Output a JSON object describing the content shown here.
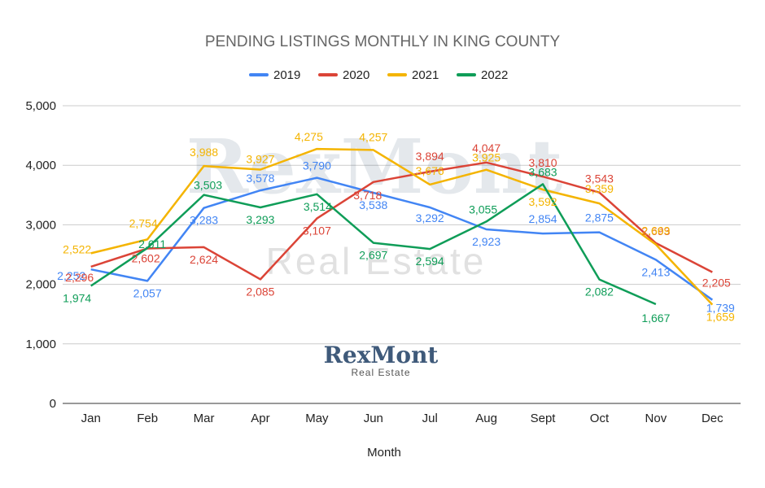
{
  "chart_data": {
    "type": "line",
    "title": "PENDING LISTINGS MONTHLY IN KING COUNTY",
    "xlabel": "Month",
    "ylabel": "",
    "categories": [
      "Jan",
      "Feb",
      "Mar",
      "Apr",
      "May",
      "Jun",
      "Jul",
      "Aug",
      "Sept",
      "Oct",
      "Nov",
      "Dec"
    ],
    "ylim": [
      0,
      5000
    ],
    "yticks": [
      "0",
      "1,000",
      "2,000",
      "3,000",
      "4,000",
      "5,000"
    ],
    "grid": true,
    "legend_position": "top-center",
    "series": [
      {
        "name": "2019",
        "color": "#4285f4",
        "values": [
          2252,
          2057,
          3283,
          3578,
          3790,
          3538,
          3292,
          2923,
          2854,
          2875,
          2413,
          1739
        ],
        "labels": [
          "2,252",
          "2,057",
          "3,283",
          "3,578",
          "3,790",
          "3,538",
          "3,292",
          "2,923",
          "2,854",
          "2,875",
          "2,413",
          "1,739"
        ]
      },
      {
        "name": "2020",
        "color": "#db4437",
        "values": [
          2296,
          2602,
          2624,
          2085,
          3107,
          3718,
          3894,
          4047,
          3810,
          3543,
          2693,
          2205
        ],
        "labels": [
          "2,296",
          "2,602",
          "2,624",
          "2,085",
          "3,107",
          "3,718",
          "3,894",
          "4,047",
          "3,810",
          "3,543",
          "2,693",
          "2,205"
        ]
      },
      {
        "name": "2021",
        "color": "#f4b400",
        "values": [
          2522,
          2754,
          3988,
          3927,
          4275,
          4257,
          3676,
          3925,
          3592,
          3359,
          2669,
          1659
        ],
        "labels": [
          "2,522",
          "2,754",
          "3,988",
          "3,927",
          "4,275",
          "4,257",
          "3,676",
          "3,925",
          "3,592",
          "3,359",
          "2,669",
          "1,659"
        ]
      },
      {
        "name": "2022",
        "color": "#0f9d58",
        "values": [
          1974,
          2611,
          3503,
          3293,
          3514,
          2697,
          2594,
          3055,
          3683,
          2082,
          1667,
          null
        ],
        "labels": [
          "1,974",
          "2,611",
          "3,503",
          "3,293",
          "3,514",
          "2,697",
          "2,594",
          "3,055",
          "3,683",
          "2,082",
          "1,667",
          ""
        ]
      }
    ]
  },
  "watermark": {
    "name": "RexMont",
    "subtitle": "Real Estate"
  },
  "logo": {
    "name": "RexMont",
    "subtitle": "Real Estate"
  }
}
